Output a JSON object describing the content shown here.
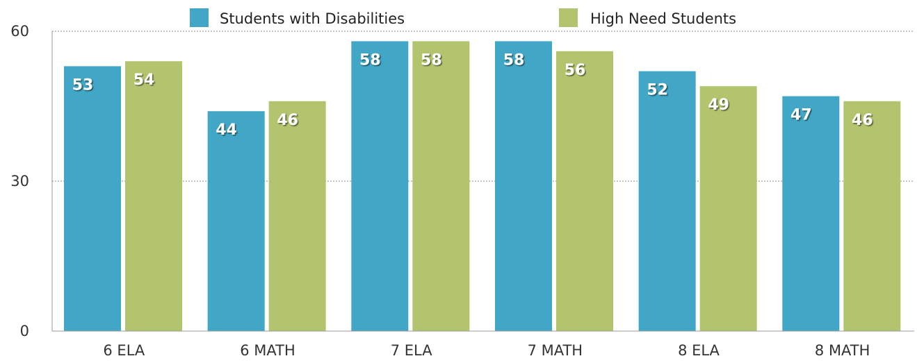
{
  "chart_data": {
    "type": "bar",
    "categories": [
      "6 ELA",
      "6 MATH",
      "7 ELA",
      "7 MATH",
      "8 ELA",
      "8 MATH"
    ],
    "series": [
      {
        "name": "Students with Disabilities",
        "color": "#42a7c6",
        "values": [
          53,
          44,
          58,
          58,
          52,
          47
        ]
      },
      {
        "name": "High Need Students",
        "color": "#b2c56e",
        "values": [
          54,
          46,
          58,
          56,
          49,
          46
        ]
      }
    ],
    "yticks": [
      0,
      30,
      60
    ],
    "ylim": [
      0,
      60
    ],
    "grid": true,
    "legend_position": "top",
    "data_labels": true
  }
}
